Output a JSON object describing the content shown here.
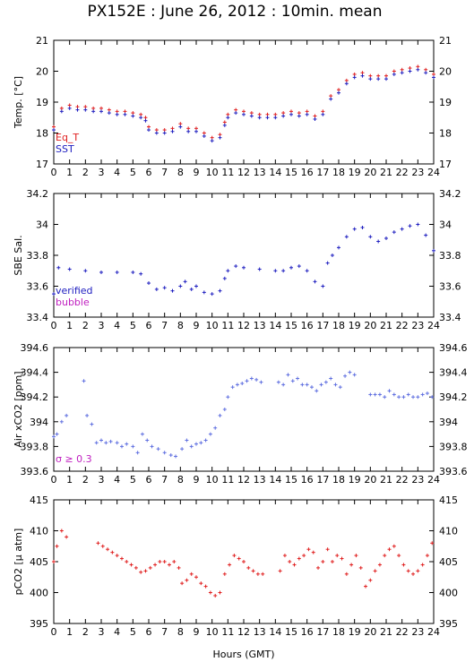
{
  "title": "PX152E : June 26, 2012 : 10min. mean",
  "xlabel": "Hours (GMT)",
  "colors": {
    "red": "#e02020",
    "blue": "#2020c0",
    "lightblue": "#6070e0",
    "magenta": "#c020c0"
  },
  "chart_data": [
    {
      "type": "scatter",
      "ylabel": "Temp. [°C]",
      "xlim": [
        0,
        24
      ],
      "ylim": [
        17,
        21
      ],
      "yticks": [
        "17",
        "18",
        "19",
        "20",
        "21"
      ],
      "xticks": [
        "0",
        "1",
        "2",
        "3",
        "4",
        "5",
        "6",
        "7",
        "8",
        "9",
        "10",
        "11",
        "12",
        "13",
        "14",
        "15",
        "16",
        "17",
        "18",
        "19",
        "20",
        "21",
        "22",
        "23",
        "24"
      ],
      "legend": [
        {
          "name": "Eq_T",
          "color": "#e02020"
        },
        {
          "name": "SST",
          "color": "#2020c0"
        }
      ],
      "series": [
        {
          "name": "Eq_T",
          "color": "#e02020",
          "x": [
            0.0,
            0.5,
            1.0,
            1.5,
            2.0,
            2.5,
            3.0,
            3.5,
            4.0,
            4.5,
            5.0,
            5.5,
            5.8,
            6.0,
            6.5,
            7.0,
            7.5,
            8.0,
            8.5,
            9.0,
            9.5,
            10.0,
            10.5,
            10.8,
            11.0,
            11.5,
            12.0,
            12.5,
            13.0,
            13.5,
            14.0,
            14.5,
            15.0,
            15.5,
            16.0,
            16.5,
            17.0,
            17.5,
            18.0,
            18.5,
            19.0,
            19.5,
            20.0,
            20.5,
            21.0,
            21.5,
            22.0,
            22.5,
            23.0,
            23.5,
            24.0
          ],
          "y": [
            18.2,
            18.8,
            18.9,
            18.85,
            18.85,
            18.8,
            18.8,
            18.75,
            18.7,
            18.7,
            18.65,
            18.6,
            18.5,
            18.2,
            18.1,
            18.1,
            18.15,
            18.3,
            18.15,
            18.15,
            18.0,
            17.85,
            17.95,
            18.35,
            18.6,
            18.75,
            18.7,
            18.65,
            18.6,
            18.6,
            18.6,
            18.65,
            18.7,
            18.65,
            18.7,
            18.55,
            18.7,
            19.2,
            19.4,
            19.7,
            19.9,
            19.95,
            19.85,
            19.85,
            19.85,
            20.0,
            20.05,
            20.1,
            20.15,
            20.05,
            19.9
          ]
        },
        {
          "name": "SST",
          "color": "#2020c0",
          "x": [
            0.0,
            0.5,
            1.0,
            1.5,
            2.0,
            2.5,
            3.0,
            3.5,
            4.0,
            4.5,
            5.0,
            5.5,
            5.8,
            6.0,
            6.5,
            7.0,
            7.5,
            8.0,
            8.5,
            9.0,
            9.5,
            10.0,
            10.5,
            10.8,
            11.0,
            11.5,
            12.0,
            12.5,
            13.0,
            13.5,
            14.0,
            14.5,
            15.0,
            15.5,
            16.0,
            16.5,
            17.0,
            17.5,
            18.0,
            18.5,
            19.0,
            19.5,
            20.0,
            20.5,
            21.0,
            21.5,
            22.0,
            22.5,
            23.0,
            23.5,
            24.0
          ],
          "y": [
            18.1,
            18.7,
            18.8,
            18.75,
            18.75,
            18.7,
            18.7,
            18.65,
            18.6,
            18.6,
            18.55,
            18.5,
            18.4,
            18.1,
            18.0,
            18.0,
            18.05,
            18.2,
            18.05,
            18.05,
            17.9,
            17.75,
            17.85,
            18.25,
            18.5,
            18.65,
            18.6,
            18.55,
            18.5,
            18.5,
            18.5,
            18.55,
            18.6,
            18.55,
            18.6,
            18.45,
            18.6,
            19.1,
            19.3,
            19.6,
            19.8,
            19.85,
            19.75,
            19.75,
            19.75,
            19.9,
            19.95,
            20.0,
            20.05,
            19.95,
            19.8
          ]
        }
      ]
    },
    {
      "type": "scatter",
      "ylabel": "SBE Sal.",
      "xlim": [
        0,
        24
      ],
      "ylim": [
        33.4,
        34.2
      ],
      "yticks": [
        "33.4",
        "33.6",
        "33.8",
        "34",
        "34.2"
      ],
      "xticks": [
        "0",
        "1",
        "2",
        "3",
        "4",
        "5",
        "6",
        "7",
        "8",
        "9",
        "10",
        "11",
        "12",
        "13",
        "14",
        "15",
        "16",
        "17",
        "18",
        "19",
        "20",
        "21",
        "22",
        "23",
        "24"
      ],
      "legend": [
        {
          "name": "verified",
          "color": "#2020c0"
        },
        {
          "name": "bubble",
          "color": "#c020c0"
        }
      ],
      "series": [
        {
          "name": "verified",
          "color": "#2020c0",
          "x": [
            0.0,
            0.3,
            1.0,
            2.0,
            3.0,
            4.0,
            5.0,
            5.5,
            6.0,
            6.5,
            7.0,
            7.5,
            8.0,
            8.3,
            8.7,
            9.0,
            9.5,
            10.0,
            10.5,
            10.8,
            11.0,
            11.5,
            12.0,
            13.0,
            14.0,
            14.5,
            15.0,
            15.5,
            16.0,
            16.5,
            17.0,
            17.3,
            17.6,
            18.0,
            18.5,
            19.0,
            19.5,
            20.0,
            20.5,
            21.0,
            21.5,
            22.0,
            22.5,
            23.0,
            23.5,
            24.0
          ],
          "y": [
            33.55,
            33.72,
            33.71,
            33.7,
            33.69,
            33.69,
            33.69,
            33.68,
            33.62,
            33.58,
            33.59,
            33.57,
            33.6,
            33.63,
            33.58,
            33.6,
            33.56,
            33.55,
            33.57,
            33.65,
            33.7,
            33.73,
            33.72,
            33.71,
            33.7,
            33.7,
            33.72,
            33.73,
            33.7,
            33.63,
            33.6,
            33.75,
            33.8,
            33.85,
            33.92,
            33.97,
            33.98,
            33.92,
            33.89,
            33.91,
            33.95,
            33.97,
            33.99,
            34.0,
            33.93,
            33.83
          ]
        }
      ]
    },
    {
      "type": "scatter",
      "ylabel": "Air xCO2 [ppm]",
      "xlim": [
        0,
        24
      ],
      "ylim": [
        393.6,
        394.6
      ],
      "yticks": [
        "393.6",
        "393.8",
        "394",
        "394.2",
        "394.4",
        "394.6"
      ],
      "xticks": [
        "0",
        "1",
        "2",
        "3",
        "4",
        "5",
        "6",
        "7",
        "8",
        "9",
        "10",
        "11",
        "12",
        "13",
        "14",
        "15",
        "16",
        "17",
        "18",
        "19",
        "20",
        "21",
        "22",
        "23",
        "24"
      ],
      "annotation": "σ ≥ 0.3",
      "series": [
        {
          "name": "",
          "color": "#6070e0",
          "x": [
            0.0,
            0.2,
            0.5,
            0.8,
            1.9,
            2.1,
            2.4,
            2.7,
            3.0,
            3.3,
            3.6,
            4.0,
            4.3,
            4.6,
            5.0,
            5.3,
            5.6,
            5.9,
            6.2,
            6.6,
            7.0,
            7.4,
            7.7,
            8.1,
            8.4,
            8.7,
            9.0,
            9.3,
            9.6,
            9.9,
            10.2,
            10.5,
            10.8,
            11.0,
            11.3,
            11.6,
            11.9,
            12.2,
            12.5,
            12.8,
            13.1,
            14.2,
            14.5,
            14.8,
            15.1,
            15.4,
            15.7,
            16.0,
            16.3,
            16.6,
            16.9,
            17.2,
            17.5,
            17.8,
            18.1,
            18.4,
            18.7,
            19.0,
            20.0,
            20.3,
            20.6,
            20.9,
            21.2,
            21.5,
            21.8,
            22.1,
            22.4,
            22.7,
            23.0,
            23.3,
            23.6,
            23.9
          ],
          "y": [
            393.88,
            393.9,
            394.0,
            394.05,
            394.33,
            394.05,
            393.98,
            393.83,
            393.85,
            393.83,
            393.84,
            393.83,
            393.8,
            393.82,
            393.8,
            393.75,
            393.9,
            393.85,
            393.8,
            393.78,
            393.75,
            393.73,
            393.72,
            393.78,
            393.85,
            393.8,
            393.82,
            393.83,
            393.85,
            393.9,
            393.95,
            394.05,
            394.1,
            394.2,
            394.28,
            394.3,
            394.31,
            394.33,
            394.35,
            394.34,
            394.32,
            394.32,
            394.3,
            394.38,
            394.33,
            394.35,
            394.3,
            394.3,
            394.28,
            394.25,
            394.3,
            394.32,
            394.35,
            394.3,
            394.28,
            394.37,
            394.4,
            394.38,
            394.22,
            394.22,
            394.22,
            394.2,
            394.25,
            394.22,
            394.2,
            394.2,
            394.22,
            394.2,
            394.2,
            394.22,
            394.23,
            394.2
          ]
        }
      ]
    },
    {
      "type": "scatter",
      "ylabel": "pCO2 [μ atm]",
      "xlim": [
        0,
        24
      ],
      "ylim": [
        395,
        415
      ],
      "yticks": [
        "395",
        "400",
        "405",
        "410",
        "415"
      ],
      "xticks": [
        "0",
        "1",
        "2",
        "3",
        "4",
        "5",
        "6",
        "7",
        "8",
        "9",
        "10",
        "11",
        "12",
        "13",
        "14",
        "15",
        "16",
        "17",
        "18",
        "19",
        "20",
        "21",
        "22",
        "23",
        "24"
      ],
      "series": [
        {
          "name": "",
          "color": "#e02020",
          "x": [
            0.0,
            0.2,
            0.5,
            0.8,
            2.8,
            3.1,
            3.4,
            3.7,
            4.0,
            4.3,
            4.6,
            4.9,
            5.2,
            5.5,
            5.8,
            6.1,
            6.4,
            6.7,
            7.0,
            7.3,
            7.6,
            7.9,
            8.1,
            8.4,
            8.7,
            9.0,
            9.3,
            9.6,
            9.9,
            10.2,
            10.5,
            10.8,
            11.1,
            11.4,
            11.7,
            12.0,
            12.3,
            12.6,
            12.9,
            13.2,
            14.3,
            14.6,
            14.9,
            15.2,
            15.5,
            15.8,
            16.1,
            16.4,
            16.7,
            17.0,
            17.3,
            17.6,
            17.9,
            18.2,
            18.5,
            18.8,
            19.1,
            19.4,
            19.7,
            20.0,
            20.3,
            20.6,
            20.9,
            21.2,
            21.5,
            21.8,
            22.1,
            22.4,
            22.7,
            23.0,
            23.3,
            23.6,
            23.9
          ],
          "y": [
            405.0,
            407.5,
            410.0,
            409.0,
            408.0,
            407.5,
            407.0,
            406.5,
            406.0,
            405.5,
            405.0,
            404.5,
            404.0,
            403.3,
            403.5,
            404.0,
            404.5,
            405.0,
            405.0,
            404.5,
            405.0,
            404.0,
            401.5,
            402.0,
            403.0,
            402.5,
            401.5,
            401.0,
            400.0,
            399.5,
            400.0,
            403.0,
            404.5,
            406.0,
            405.5,
            405.0,
            404.0,
            403.5,
            403.0,
            403.0,
            403.5,
            406.0,
            405.0,
            404.5,
            405.5,
            406.0,
            407.0,
            406.5,
            404.0,
            405.0,
            407.0,
            405.0,
            406.0,
            405.5,
            403.0,
            404.5,
            406.0,
            404.0,
            401.0,
            402.0,
            403.5,
            404.5,
            406.0,
            407.0,
            407.5,
            406.0,
            404.5,
            403.5,
            403.0,
            403.5,
            404.5,
            406.0,
            408.0
          ]
        }
      ]
    }
  ]
}
